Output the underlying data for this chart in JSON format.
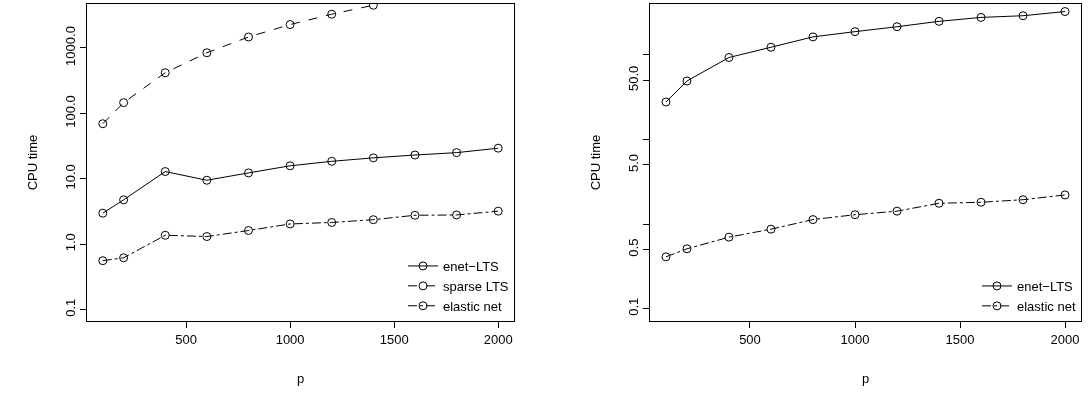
{
  "chart_data": [
    {
      "type": "line",
      "xlabel": "p",
      "ylabel": "CPU time",
      "log": "y",
      "grid": false,
      "legend": "bottom right",
      "marker": "circle",
      "x": [
        100,
        200,
        400,
        600,
        800,
        1000,
        1200,
        1400,
        1600,
        1800,
        2000
      ],
      "xlim": [
        24,
        2076
      ],
      "xticks": [
        500,
        1000,
        1500,
        2000
      ],
      "ylim": [
        0.067,
        4700
      ],
      "yticks": [
        {
          "value": 0.1,
          "label": "0.1"
        },
        {
          "value": 1,
          "label": "1.0"
        },
        {
          "value": 10,
          "label": "10.0"
        },
        {
          "value": 100,
          "label": "100.0"
        },
        {
          "value": 1000,
          "label": "1000.0"
        }
      ],
      "series": [
        {
          "name": "enet−LTS",
          "color": "#000000",
          "line_style": "solid",
          "values": [
            2.98,
            4.77,
            12.9,
            9.5,
            12.3,
            15.8,
            18.5,
            20.9,
            23.1,
            25.1,
            29.4
          ]
        },
        {
          "name": "sparse LTS",
          "color": "#000000",
          "line_style": "dashed",
          "values": [
            69.5,
            146,
            418,
            844,
            1470,
            2280,
            3280,
            4500,
            null,
            null,
            null
          ]
        },
        {
          "name": "elastic net",
          "color": "#000000",
          "line_style": "dashdot",
          "values": [
            0.56,
            0.62,
            1.37,
            1.31,
            1.62,
            2.04,
            2.15,
            2.37,
            2.77,
            2.8,
            3.2
          ]
        }
      ]
    },
    {
      "type": "line",
      "xlabel": "p",
      "ylabel": "CPU time",
      "log": "y",
      "grid": false,
      "legend": "bottom right",
      "marker": "circle",
      "x": [
        100,
        200,
        400,
        600,
        800,
        1000,
        1200,
        1400,
        1600,
        1800,
        2000
      ],
      "xlim": [
        24,
        2076
      ],
      "xticks": [
        500,
        1000,
        1500,
        2000
      ],
      "ylim": [
        0.0715,
        399
      ],
      "yticks": [
        {
          "value": 0.1,
          "label": "0.1"
        },
        {
          "value": 0.5,
          "label": "0.5"
        },
        {
          "value": 1,
          "label": null
        },
        {
          "value": 5,
          "label": "5.0"
        },
        {
          "value": 10,
          "label": null
        },
        {
          "value": 50,
          "label": "50.0"
        },
        {
          "value": 100,
          "label": null
        }
      ],
      "series": [
        {
          "name": "enet−LTS",
          "color": "#000000",
          "line_style": "solid",
          "values": [
            27.7,
            49.1,
            93,
            123,
            163,
            188,
            215,
            249,
            277,
            290,
            325
          ]
        },
        {
          "name": "elastic net",
          "color": "#000000",
          "line_style": "dashdot",
          "values": [
            0.41,
            0.51,
            0.7,
            0.87,
            1.13,
            1.29,
            1.42,
            1.76,
            1.81,
            1.94,
            2.21
          ]
        }
      ]
    }
  ]
}
